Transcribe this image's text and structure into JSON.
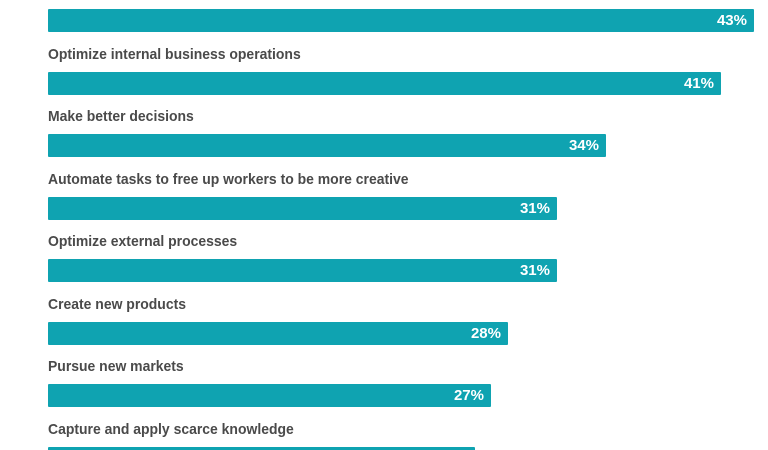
{
  "chart_data": {
    "type": "bar",
    "orientation": "horizontal",
    "categories": [
      "",
      "Optimize internal business operations",
      "Make better decisions",
      "Automate tasks to free up workers to be more creative",
      "Optimize external processes",
      "Create new products",
      "Pursue new markets",
      "Capture and apply scarce knowledge"
    ],
    "values": [
      43,
      41,
      34,
      31,
      31,
      28,
      27,
      26
    ],
    "value_labels": [
      "43%",
      "41%",
      "34%",
      "31%",
      "31%",
      "28%",
      "27%",
      ""
    ],
    "unit": "%",
    "xlim": [
      0,
      43
    ],
    "grid": false,
    "legend": "none",
    "bar_color": "#0fa3b1"
  }
}
